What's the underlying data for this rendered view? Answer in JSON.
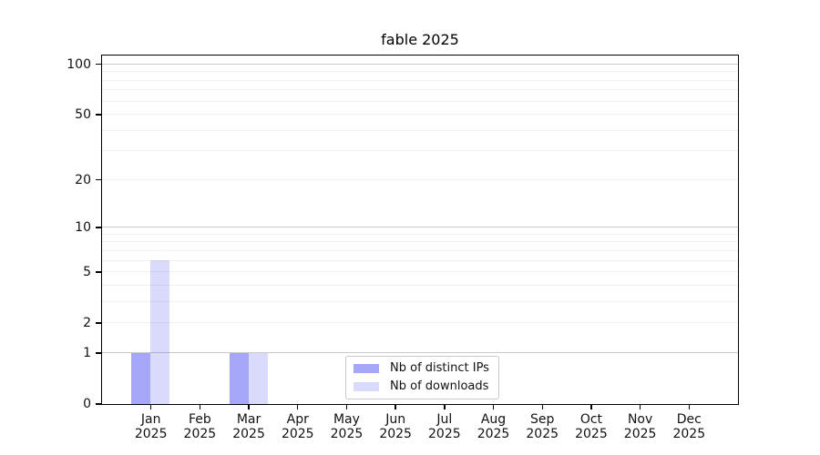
{
  "chart_data": {
    "type": "bar",
    "title": "fable 2025",
    "categories": [
      "Jan",
      "Feb",
      "Mar",
      "Apr",
      "May",
      "Jun",
      "Jul",
      "Aug",
      "Sep",
      "Oct",
      "Nov",
      "Dec"
    ],
    "category_year": "2025",
    "series": [
      {
        "name": "Nb of distinct IPs",
        "fill": "rgba(70,70,240,0.48)",
        "values": [
          1,
          0,
          1,
          0,
          0,
          0,
          0,
          0,
          0,
          0,
          0,
          0
        ]
      },
      {
        "name": "Nb of downloads",
        "fill": "rgba(70,70,240,0.20)",
        "values": [
          6,
          0,
          1,
          0,
          0,
          0,
          0,
          0,
          0,
          0,
          0,
          0
        ]
      }
    ],
    "y_scale": "log10(1+x)",
    "y_major_ticks": [
      0,
      1,
      2,
      5,
      10,
      20,
      50,
      100
    ],
    "y_tick_labels": [
      "0",
      "1",
      "2",
      "5",
      "10",
      "20",
      "50",
      "100"
    ],
    "y_decade_gridlines": [
      1,
      10,
      100
    ],
    "y_minor_gridlines": [
      2,
      3,
      4,
      5,
      6,
      7,
      8,
      9,
      20,
      30,
      40,
      50,
      60,
      70,
      80,
      90
    ],
    "ylim": [
      0,
      113
    ],
    "grid": "horizontal",
    "legend_position": "lower-center",
    "colors": {
      "decade_gridline": "#c9c9c9",
      "minor_gridline": "#efefef",
      "axis": "#000000",
      "text": "#111111"
    }
  },
  "legend": {
    "items": [
      {
        "label": "Nb of distinct IPs"
      },
      {
        "label": "Nb of downloads"
      }
    ]
  }
}
